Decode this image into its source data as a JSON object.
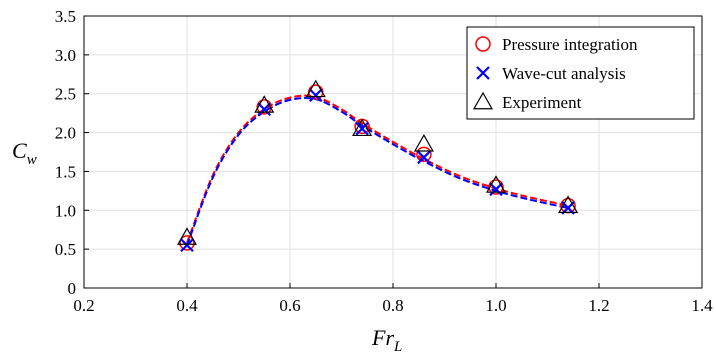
{
  "chart_data": {
    "type": "scatter",
    "xlabel": "Fr_L",
    "ylabel": "C_w",
    "xlim": [
      0.2,
      1.4
    ],
    "ylim": [
      0,
      3.5
    ],
    "xticks": [
      "0.2",
      "0.4",
      "0.6",
      "0.8",
      "1.0",
      "1.2",
      "1.4"
    ],
    "yticks": [
      "0",
      "0.5",
      "1.0",
      "1.5",
      "2.0",
      "2.5",
      "3.0",
      "3.5"
    ],
    "grid": true,
    "legend_position": "top-right",
    "series": [
      {
        "name": "Pressure integration",
        "marker": "circle",
        "color": "#ff0000",
        "x": [
          0.4,
          0.55,
          0.65,
          0.74,
          0.86,
          1.0,
          1.14
        ],
        "y": [
          0.58,
          2.33,
          2.52,
          2.08,
          1.72,
          1.3,
          1.06
        ]
      },
      {
        "name": "Wave-cut analysis",
        "marker": "x",
        "color": "#0000ff",
        "x": [
          0.4,
          0.55,
          0.65,
          0.74,
          0.86,
          1.0,
          1.14
        ],
        "y": [
          0.55,
          2.3,
          2.48,
          2.05,
          1.68,
          1.27,
          1.03
        ]
      },
      {
        "name": "Experiment",
        "marker": "triangle",
        "color": "#000000",
        "x": [
          0.4,
          0.55,
          0.65,
          0.74,
          0.86,
          1.0,
          1.14
        ],
        "y": [
          0.65,
          2.35,
          2.55,
          2.05,
          1.85,
          1.32,
          1.06
        ]
      }
    ],
    "fit_curves": [
      {
        "color": "#ff0000",
        "style": "dashed",
        "x": [
          0.4,
          0.45,
          0.5,
          0.55,
          0.6,
          0.65,
          0.7,
          0.74,
          0.8,
          0.86,
          0.93,
          1.0,
          1.07,
          1.14
        ],
        "y": [
          0.58,
          1.45,
          2.0,
          2.3,
          2.45,
          2.46,
          2.3,
          2.12,
          1.88,
          1.66,
          1.44,
          1.28,
          1.16,
          1.06
        ]
      },
      {
        "color": "#0000ff",
        "style": "dashed",
        "x": [
          0.4,
          0.45,
          0.5,
          0.55,
          0.6,
          0.65,
          0.7,
          0.74,
          0.8,
          0.86,
          0.93,
          1.0,
          1.07,
          1.14
        ],
        "y": [
          0.55,
          1.42,
          1.97,
          2.27,
          2.42,
          2.43,
          2.27,
          2.09,
          1.85,
          1.63,
          1.41,
          1.25,
          1.13,
          1.03
        ]
      }
    ]
  }
}
